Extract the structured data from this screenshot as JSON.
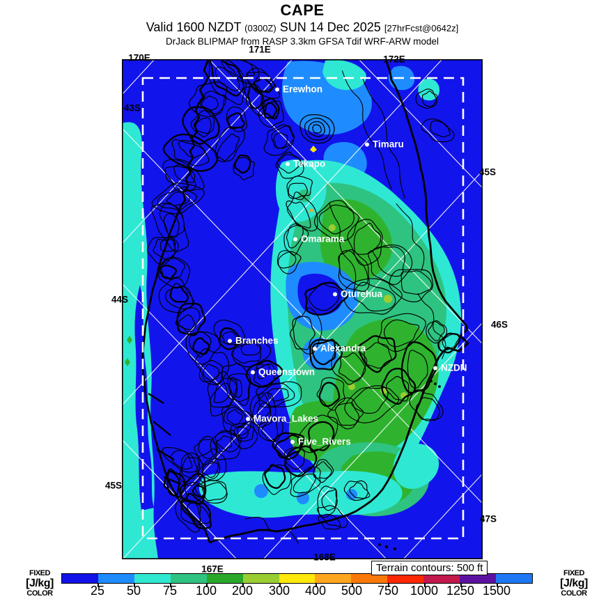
{
  "header": {
    "title": "CAPE",
    "valid_prefix": "Valid 1600 NZDT",
    "valid_zulu": "(0300Z)",
    "valid_date": "SUN 14 Dec 2025",
    "forecast_tag": "[27hrFcst@0642z]",
    "model_line": "DrJack BLIPMAP from RASP 3.3km GFSA Tdif WRF-ARW model"
  },
  "map": {
    "edge_labels": {
      "lon_top": [
        "170E",
        "171E"
      ],
      "lon_inner": "172E",
      "lat_left": [
        "43S",
        "44S",
        "45S"
      ],
      "lat_right": [
        "45S",
        "46S",
        "47S"
      ],
      "lon_bottom": [
        "167E",
        "168E"
      ]
    },
    "cities": [
      {
        "name": "Erewhon"
      },
      {
        "name": "Timaru"
      },
      {
        "name": "Tekapo"
      },
      {
        "name": "Omarama"
      },
      {
        "name": "Oturehua"
      },
      {
        "name": "Branches"
      },
      {
        "name": "Alexandra"
      },
      {
        "name": "Queenstown"
      },
      {
        "name": "NZDN"
      },
      {
        "name": "Mavora_Lakes"
      },
      {
        "name": "Five_Rivers"
      }
    ]
  },
  "legend": {
    "terrain_note": "Terrain contours: 500 ft",
    "caption": [
      "FIXED",
      "[J/kg]",
      "COLOR"
    ]
  },
  "colorbar": {
    "labels": [
      "25",
      "50",
      "75",
      "100",
      "200",
      "300",
      "400",
      "500",
      "750",
      "1000",
      "1250",
      "1500"
    ],
    "colors": [
      "#1212E8",
      "#1E8CFF",
      "#30E8D0",
      "#2EC380",
      "#2AA82A",
      "#9ACD32",
      "#FFE80A",
      "#FFA51E",
      "#FA780A",
      "#FF2800",
      "#C2184C",
      "#5C12A0",
      "#1E78F5"
    ]
  },
  "chart_data": {
    "type": "heatmap",
    "title": "CAPE",
    "units": "J/kg",
    "scale_mode": "FIXED COLOR",
    "levels_j_per_kg": [
      25,
      50,
      75,
      100,
      200,
      300,
      400,
      500,
      750,
      1000,
      1250,
      1500
    ],
    "palette": [
      "#1212E8",
      "#1E8CFF",
      "#30E8D0",
      "#2EC380",
      "#2AA82A",
      "#9ACD32",
      "#FFE80A",
      "#FFA51E",
      "#FA780A",
      "#FF2800",
      "#C2184C",
      "#5C12A0",
      "#1E78F5"
    ],
    "valid_local": "Valid 1600 NZDT (0300Z) SUN 14 Dec 2025",
    "forecast_cycle": "27hrFcst@0642z",
    "model": "DrJack BLIPMAP from RASP 3.3km GFSA Tdif WRF-ARW model",
    "terrain_contour_interval": "500 ft",
    "stations": [
      "Erewhon",
      "Timaru",
      "Tekapo",
      "Omarama",
      "Oturehua",
      "Branches",
      "Alexandra",
      "Queenstown",
      "NZDN",
      "Mavora_Lakes",
      "Five_Rivers"
    ],
    "region_graticule": {
      "lon_lines": [
        "167E",
        "168E",
        "170E",
        "171E",
        "172E"
      ],
      "lat_lines": [
        "43S",
        "44S",
        "45S",
        "46S",
        "47S"
      ]
    }
  }
}
